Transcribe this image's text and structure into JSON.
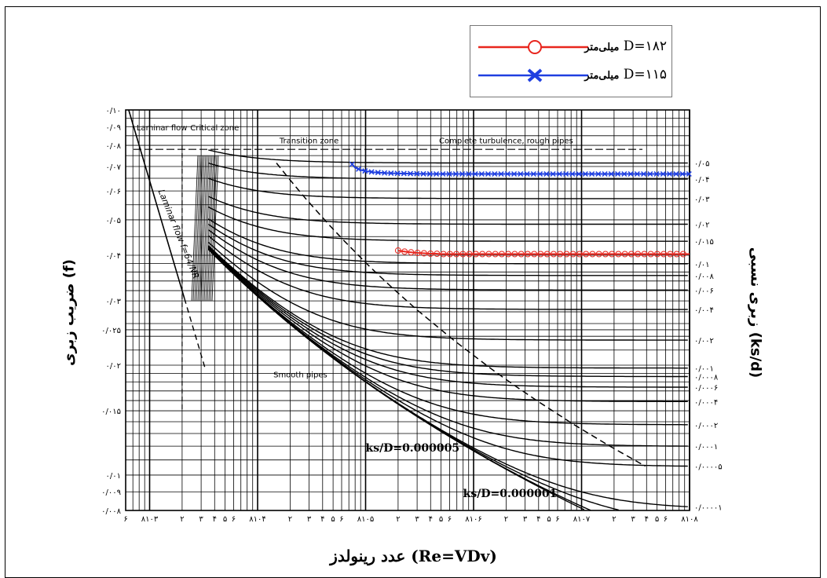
{
  "chart_data": {
    "type": "line",
    "title": "",
    "xlabel": "عدد رینولدز (Re=VDv)",
    "ylabel_left": "ضریب زبری (f)",
    "ylabel_right": "زبری نسبی (ks/d)",
    "x_scale": "log",
    "xlim": [
      600,
      100000000
    ],
    "y_scale": "log",
    "ylim": [
      0.008,
      0.1
    ],
    "x_tick_labels": [
      "۶",
      "۸۱۰۳",
      "۲",
      "۳",
      "۴",
      "۵",
      "۶",
      "۸۱۰۴",
      "۲",
      "۳",
      "۴",
      "۵",
      "۶",
      "۸۱۰۵",
      "۲",
      "۳",
      "۴",
      "۵",
      "۶",
      "۸۱۰۶",
      "۲",
      "۳",
      "۴",
      "۵",
      "۶",
      "۸۱۰۷",
      "۲",
      "۳",
      "۴",
      "۵",
      "۶",
      "۸۱۰۸"
    ],
    "y_tick_labels": [
      {
        "f": 0.1,
        "label": "۰/۱۰"
      },
      {
        "f": 0.09,
        "label": "۰/۰۹"
      },
      {
        "f": 0.08,
        "label": "۰/۰۸"
      },
      {
        "f": 0.07,
        "label": "۰/۰۷"
      },
      {
        "f": 0.06,
        "label": "۰/۰۶"
      },
      {
        "f": 0.05,
        "label": "۰/۰۵"
      },
      {
        "f": 0.04,
        "label": "۰/۰۴"
      },
      {
        "f": 0.03,
        "label": "۰/۰۳"
      },
      {
        "f": 0.025,
        "label": "۰/۰۲۵"
      },
      {
        "f": 0.02,
        "label": "۰/۰۲"
      },
      {
        "f": 0.015,
        "label": "۰/۰۱۵"
      },
      {
        "f": 0.01,
        "label": "۰/۰۱"
      },
      {
        "f": 0.009,
        "label": "۰/۰۰۹"
      },
      {
        "f": 0.008,
        "label": "۰/۰۰۸"
      }
    ],
    "roughness_labels": [
      {
        "ks": 0.05,
        "label": "۰/۰۵"
      },
      {
        "ks": 0.04,
        "label": "۰/۰۴"
      },
      {
        "ks": 0.03,
        "label": "۰/۰۳"
      },
      {
        "ks": 0.02,
        "label": "۰/۰۲"
      },
      {
        "ks": 0.015,
        "label": "۰/۰۱۵"
      },
      {
        "ks": 0.01,
        "label": "۰/۰۱"
      },
      {
        "ks": 0.008,
        "label": "۰/۰۰۸"
      },
      {
        "ks": 0.006,
        "label": "۰/۰۰۶"
      },
      {
        "ks": 0.004,
        "label": "۰/۰۰۴"
      },
      {
        "ks": 0.002,
        "label": "۰/۰۰۲"
      },
      {
        "ks": 0.001,
        "label": "۰/۰۰۱"
      },
      {
        "ks": 0.0008,
        "label": "۰/۰۰۰۸"
      },
      {
        "ks": 0.0006,
        "label": "۰/۰۰۰۶"
      },
      {
        "ks": 0.0004,
        "label": "۰/۰۰۰۴"
      },
      {
        "ks": 0.0002,
        "label": "۰/۰۰۰۲"
      },
      {
        "ks": 0.0001,
        "label": "۰/۰۰۰۱"
      },
      {
        "ks": 5e-05,
        "label": "۰/۰۰۰۰۵"
      },
      {
        "ks": 1e-05,
        "label": "۰/۰۰۰۰۱"
      }
    ],
    "turbulence_curves_ks": [
      0.05,
      0.04,
      0.03,
      0.02,
      0.015,
      0.01,
      0.008,
      0.006,
      0.004,
      0.002,
      0.001,
      0.0008,
      0.0006,
      0.0004,
      0.0002,
      0.0001,
      5e-05,
      1e-05,
      5e-06,
      1e-06,
      0
    ],
    "annotations": {
      "laminar": "Laminar flow",
      "critical": "Critical zone",
      "transition": "Transition zone",
      "complete": "Complete turbulence, rough pipes",
      "laminar_formula": "Laminar flow f=64/NR",
      "smooth": "Smooth pipes",
      "ks1": "ks/D=0.000005",
      "ks2": "ks/D=0.000001"
    },
    "series": [
      {
        "name": "میلی‌متر D=۱۸۲",
        "color": "#e8261e",
        "marker": "circle",
        "x": [
          200000,
          220000,
          250000,
          300000,
          350000,
          400000,
          450000,
          500000,
          600000,
          1000000,
          2000000,
          5000000,
          10000000,
          30000000,
          100000000
        ],
        "y": [
          0.0412,
          0.041,
          0.0408,
          0.0406,
          0.0405,
          0.0404,
          0.0404,
          0.0403,
          0.0403,
          0.0403,
          0.0403,
          0.0403,
          0.0403,
          0.0403,
          0.0403
        ]
      },
      {
        "name": "میلی‌متر D=۱۱۵",
        "color": "#1f3fe0",
        "marker": "x",
        "x": [
          75000,
          80000,
          90000,
          100000,
          120000,
          150000,
          200000,
          300000,
          400000,
          500000,
          700000,
          1000000,
          2000000,
          5000000,
          10000000,
          30000000,
          100000000
        ],
        "y": [
          0.071,
          0.0695,
          0.0685,
          0.068,
          0.0675,
          0.0672,
          0.067,
          0.0669,
          0.0668,
          0.0668,
          0.0668,
          0.0668,
          0.0668,
          0.0668,
          0.0668,
          0.0668,
          0.0668
        ]
      }
    ]
  },
  "legend": {
    "items": [
      {
        "label": "D=۱۸۲",
        "unit": "میلی‌متر",
        "color": "#e8261e",
        "marker": "circle"
      },
      {
        "label": "D=۱۱۵",
        "unit": "میلی‌متر",
        "color": "#1f3fe0",
        "marker": "x"
      }
    ]
  }
}
